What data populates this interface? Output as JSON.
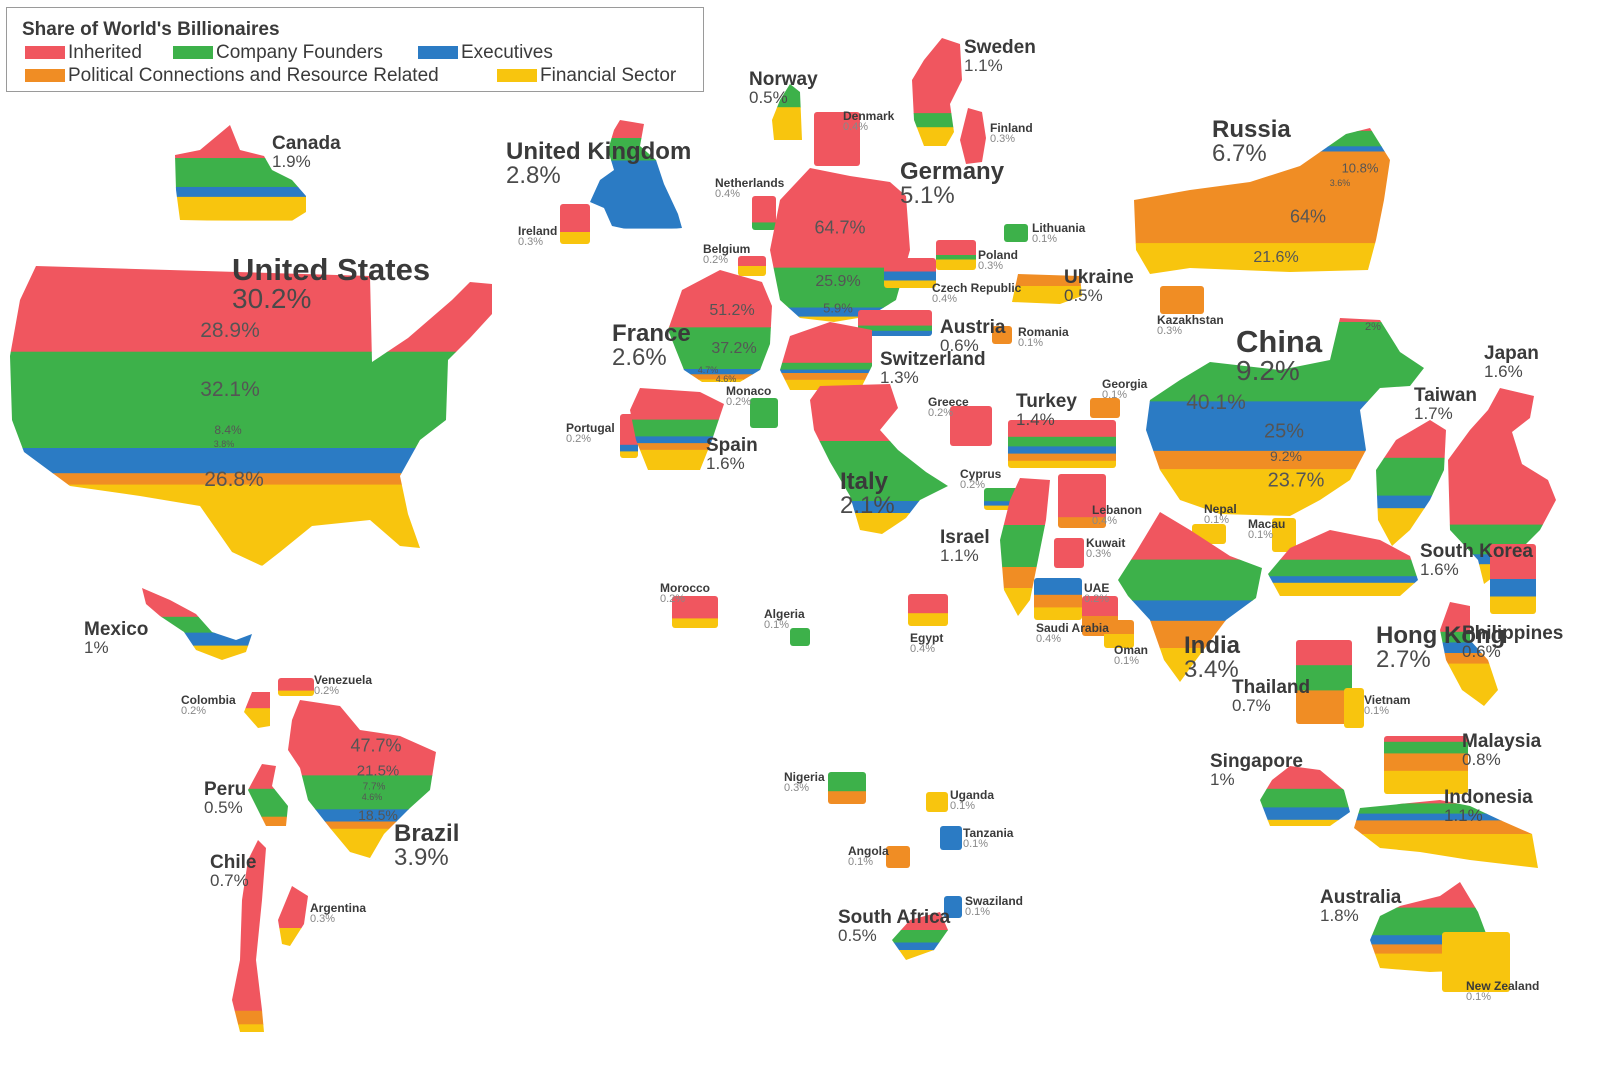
{
  "legend": {
    "title": "Share of World's Billionaires",
    "items": [
      {
        "key": "inherited",
        "label": "Inherited"
      },
      {
        "key": "founders",
        "label": "Company Founders"
      },
      {
        "key": "executives",
        "label": "Executives"
      },
      {
        "key": "political",
        "label": "Political Connections and Resource Related"
      },
      {
        "key": "financial",
        "label": "Financial Sector"
      }
    ]
  },
  "colors": {
    "inherited": "#f0565f",
    "founders": "#3db14a",
    "executives": "#2b7bc4",
    "political": "#f08d24",
    "financial": "#f8c50e"
  },
  "countries": [
    {
      "id": "united-states",
      "name": "United States",
      "share": "30.2%"
    },
    {
      "id": "canada",
      "name": "Canada",
      "share": "1.9%"
    },
    {
      "id": "mexico",
      "name": "Mexico",
      "share": "1%"
    },
    {
      "id": "venezuela",
      "name": "Venezuela",
      "share": "0.2%"
    },
    {
      "id": "colombia",
      "name": "Colombia",
      "share": "0.2%"
    },
    {
      "id": "peru",
      "name": "Peru",
      "share": "0.5%"
    },
    {
      "id": "brazil",
      "name": "Brazil",
      "share": "3.9%"
    },
    {
      "id": "chile",
      "name": "Chile",
      "share": "0.7%"
    },
    {
      "id": "argentina",
      "name": "Argentina",
      "share": "0.3%"
    },
    {
      "id": "united-kingdom",
      "name": "United Kingdom",
      "share": "2.8%"
    },
    {
      "id": "ireland",
      "name": "Ireland",
      "share": "0.3%"
    },
    {
      "id": "norway",
      "name": "Norway",
      "share": "0.5%"
    },
    {
      "id": "sweden",
      "name": "Sweden",
      "share": "1.1%"
    },
    {
      "id": "denmark",
      "name": "Denmark",
      "share": "0.4%"
    },
    {
      "id": "finland",
      "name": "Finland",
      "share": "0.3%"
    },
    {
      "id": "netherlands",
      "name": "Netherlands",
      "share": "0.4%"
    },
    {
      "id": "belgium",
      "name": "Belgium",
      "share": "0.2%"
    },
    {
      "id": "germany",
      "name": "Germany",
      "share": "5.1%"
    },
    {
      "id": "lithuania",
      "name": "Lithuania",
      "share": "0.1%"
    },
    {
      "id": "poland",
      "name": "Poland",
      "share": "0.3%"
    },
    {
      "id": "ukraine",
      "name": "Ukraine",
      "share": "0.5%"
    },
    {
      "id": "czech-republic",
      "name": "Czech Republic",
      "share": "0.4%"
    },
    {
      "id": "austria",
      "name": "Austria",
      "share": "0.6%"
    },
    {
      "id": "romania",
      "name": "Romania",
      "share": "0.1%"
    },
    {
      "id": "france",
      "name": "France",
      "share": "2.6%"
    },
    {
      "id": "monaco",
      "name": "Monaco",
      "share": "0.2%"
    },
    {
      "id": "switzerland",
      "name": "Switzerland",
      "share": "1.3%"
    },
    {
      "id": "portugal",
      "name": "Portugal",
      "share": "0.2%"
    },
    {
      "id": "spain",
      "name": "Spain",
      "share": "1.6%"
    },
    {
      "id": "italy",
      "name": "Italy",
      "share": "2.1%"
    },
    {
      "id": "greece",
      "name": "Greece",
      "share": "0.2%"
    },
    {
      "id": "turkey",
      "name": "Turkey",
      "share": "1.4%"
    },
    {
      "id": "georgia",
      "name": "Georgia",
      "share": "0.1%"
    },
    {
      "id": "cyprus",
      "name": "Cyprus",
      "share": "0.2%"
    },
    {
      "id": "lebanon",
      "name": "Lebanon",
      "share": "0.4%"
    },
    {
      "id": "israel",
      "name": "Israel",
      "share": "1.1%"
    },
    {
      "id": "kuwait",
      "name": "Kuwait",
      "share": "0.3%"
    },
    {
      "id": "uae",
      "name": "UAE",
      "share": "0.2%"
    },
    {
      "id": "saudi-arabia",
      "name": "Saudi Arabia",
      "share": "0.4%"
    },
    {
      "id": "oman",
      "name": "Oman",
      "share": "0.1%"
    },
    {
      "id": "egypt",
      "name": "Egypt",
      "share": "0.4%"
    },
    {
      "id": "morocco",
      "name": "Morocco",
      "share": "0.2%"
    },
    {
      "id": "algeria",
      "name": "Algeria",
      "share": "0.1%"
    },
    {
      "id": "nigeria",
      "name": "Nigeria",
      "share": "0.3%"
    },
    {
      "id": "uganda",
      "name": "Uganda",
      "share": "0.1%"
    },
    {
      "id": "tanzania",
      "name": "Tanzania",
      "share": "0.1%"
    },
    {
      "id": "angola",
      "name": "Angola",
      "share": "0.1%"
    },
    {
      "id": "swaziland",
      "name": "Swaziland",
      "share": "0.1%"
    },
    {
      "id": "south-africa",
      "name": "South Africa",
      "share": "0.5%"
    },
    {
      "id": "russia",
      "name": "Russia",
      "share": "6.7%"
    },
    {
      "id": "kazakhstan",
      "name": "Kazakhstan",
      "share": "0.3%"
    },
    {
      "id": "china",
      "name": "China",
      "share": "9.2%"
    },
    {
      "id": "nepal",
      "name": "Nepal",
      "share": "0.1%"
    },
    {
      "id": "macau",
      "name": "Macau",
      "share": "0.1%"
    },
    {
      "id": "india",
      "name": "India",
      "share": "3.4%"
    },
    {
      "id": "japan",
      "name": "Japan",
      "share": "1.6%"
    },
    {
      "id": "taiwan",
      "name": "Taiwan",
      "share": "1.7%"
    },
    {
      "id": "south-korea",
      "name": "South Korea",
      "share": "1.6%"
    },
    {
      "id": "hong-kong",
      "name": "Hong Kong",
      "share": "2.7%"
    },
    {
      "id": "philippines",
      "name": "Philippines",
      "share": "0.6%"
    },
    {
      "id": "thailand",
      "name": "Thailand",
      "share": "0.7%"
    },
    {
      "id": "vietnam",
      "name": "Vietnam",
      "share": "0.1%"
    },
    {
      "id": "singapore",
      "name": "Singapore",
      "share": "1%"
    },
    {
      "id": "malaysia",
      "name": "Malaysia",
      "share": "0.8%"
    },
    {
      "id": "indonesia",
      "name": "Indonesia",
      "share": "1.1%"
    },
    {
      "id": "australia",
      "name": "Australia",
      "share": "1.8%"
    },
    {
      "id": "new-zealand",
      "name": "New Zealand",
      "share": "0.1%"
    }
  ],
  "breakdowns": {
    "united_states": {
      "inherited": "28.9%",
      "founders": "32.1%",
      "executives": "8.4%",
      "political": "3.8%",
      "financial": "26.8%"
    },
    "germany": {
      "inherited": "64.7%",
      "founders": "25.9%",
      "executives": "5.9%"
    },
    "france": {
      "inherited": "51.2%",
      "founders": "37.2%",
      "executives": "4.7%",
      "political": "4.6%"
    },
    "brazil": {
      "inherited": "47.7%",
      "founders": "21.5%",
      "executives": "7.7%",
      "political": "4.6%",
      "financial": "18.5%"
    },
    "russia": {
      "inherited": "2%",
      "founders": "10.8%",
      "executives": "3.6%",
      "political": "64%",
      "financial": "21.6%"
    },
    "china": {
      "inherited": "2%",
      "founders": "40.1%",
      "executives": "25%",
      "political": "9.2%",
      "financial": "23.7%"
    }
  }
}
